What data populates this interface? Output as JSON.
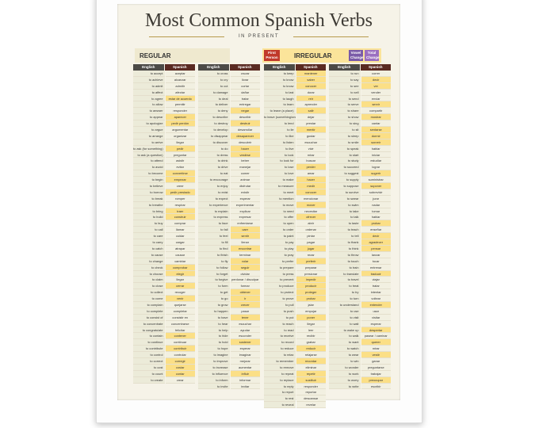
{
  "header": {
    "title": "Most Common Spanish Verbs",
    "subtitle": "IN PRESENT"
  },
  "legend": {
    "regular": "REGULAR",
    "irregular": "IRREGULAR",
    "first_person": "First Person",
    "vowel_change": "Vowel Change",
    "total_change": "Total Change"
  },
  "table": {
    "headers": [
      "English",
      "Spanish"
    ],
    "columns": [
      {
        "rows": [
          {
            "en": "to accept",
            "es": "aceptar"
          },
          {
            "en": "to achieve",
            "es": "alcanzar"
          },
          {
            "en": "to admit",
            "es": "admitir"
          },
          {
            "en": "to affect",
            "es": "afectar"
          },
          {
            "en": "to agree",
            "es": "estar de acuerdo",
            "irr": true
          },
          {
            "en": "to allow",
            "es": "permitir"
          },
          {
            "en": "to answer",
            "es": "responder"
          },
          {
            "en": "to appear",
            "es": "aparecer",
            "irr": true
          },
          {
            "en": "to apologize",
            "es": "pedir perdón",
            "irr": true
          },
          {
            "en": "to argue",
            "es": "argumentar"
          },
          {
            "en": "to arrange",
            "es": "organizar"
          },
          {
            "en": "to arrive",
            "es": "llegar"
          },
          {
            "en": "to ask (for something)",
            "es": "pedir",
            "irr": true
          },
          {
            "en": "to ask (a question)",
            "es": "preguntar"
          },
          {
            "en": "to attend",
            "es": "asistir"
          },
          {
            "en": "to avoid",
            "es": "evitar"
          },
          {
            "en": "to become",
            "es": "convertirse",
            "irr": true
          },
          {
            "en": "to begin",
            "es": "empezar",
            "irr": true
          },
          {
            "en": "to believe",
            "es": "creer"
          },
          {
            "en": "to borrow",
            "es": "pedir prestado",
            "irr": true
          },
          {
            "en": "to break",
            "es": "romper"
          },
          {
            "en": "to breathe",
            "es": "respirar"
          },
          {
            "en": "to bring",
            "es": "traer",
            "irr": true
          },
          {
            "en": "to build",
            "es": "construir",
            "irr": true
          },
          {
            "en": "to buy",
            "es": "comprar"
          },
          {
            "en": "to call",
            "es": "llamar"
          },
          {
            "en": "to care",
            "es": "cuidar"
          },
          {
            "en": "to carry",
            "es": "cargar"
          },
          {
            "en": "to catch",
            "es": "atrapar"
          },
          {
            "en": "to cause",
            "es": "causar"
          },
          {
            "en": "to change",
            "es": "cambiar"
          },
          {
            "en": "to check",
            "es": "comprobar",
            "irr": true
          },
          {
            "en": "to choose",
            "es": "elegir",
            "irr": true
          },
          {
            "en": "to claim",
            "es": "llegar"
          },
          {
            "en": "to close",
            "es": "cerrar",
            "irr": true
          },
          {
            "en": "to collect",
            "es": "recoger"
          },
          {
            "en": "to come",
            "es": "venir",
            "irr": true
          },
          {
            "en": "to complain",
            "es": "quejarse"
          },
          {
            "en": "to complete",
            "es": "completar"
          },
          {
            "en": "to consist of",
            "es": "consistir en"
          },
          {
            "en": "to concentrate",
            "es": "concentrarse"
          },
          {
            "en": "to congratulate",
            "es": "felicitar"
          },
          {
            "en": "to contain",
            "es": "contener",
            "irr": true
          },
          {
            "en": "to continue",
            "es": "continuar"
          },
          {
            "en": "to contribute",
            "es": "contribuir",
            "irr": true
          },
          {
            "en": "to control",
            "es": "controlar"
          },
          {
            "en": "to correct",
            "es": "corregir",
            "irr": true
          },
          {
            "en": "to cost",
            "es": "costar",
            "irr": true
          },
          {
            "en": "to count",
            "es": "contar",
            "irr": true
          },
          {
            "en": "to create",
            "es": "crear"
          }
        ]
      },
      {
        "rows": [
          {
            "en": "to cross",
            "es": "cruzar"
          },
          {
            "en": "to cry",
            "es": "llorar"
          },
          {
            "en": "to cut",
            "es": "cortar"
          },
          {
            "en": "to damage",
            "es": "dañar"
          },
          {
            "en": "to deal",
            "es": "tratar"
          },
          {
            "en": "to deliver",
            "es": "entregar"
          },
          {
            "en": "to deny",
            "es": "negar",
            "irr": true
          },
          {
            "en": "to describe",
            "es": "describir"
          },
          {
            "en": "to destroy",
            "es": "destruir",
            "irr": true
          },
          {
            "en": "to develop",
            "es": "desarrollar"
          },
          {
            "en": "to disappear",
            "es": "desaparecer",
            "irr": true
          },
          {
            "en": "to discover",
            "es": "descubrir"
          },
          {
            "en": "to do",
            "es": "hacer",
            "irr": true
          },
          {
            "en": "to dress",
            "es": "vestirse",
            "irr": true
          },
          {
            "en": "to drink",
            "es": "beber"
          },
          {
            "en": "to drive",
            "es": "manejar"
          },
          {
            "en": "to eat",
            "es": "comer"
          },
          {
            "en": "to encourage",
            "es": "animar"
          },
          {
            "en": "to enjoy",
            "es": "disfrutar"
          },
          {
            "en": "to exist",
            "es": "existir"
          },
          {
            "en": "to expect",
            "es": "esperar"
          },
          {
            "en": "to experience",
            "es": "experimentar"
          },
          {
            "en": "to explain",
            "es": "explicar"
          },
          {
            "en": "to express",
            "es": "expresar"
          },
          {
            "en": "to face",
            "es": "enfrentarse"
          },
          {
            "en": "to fall",
            "es": "caer",
            "irr": true
          },
          {
            "en": "to feel",
            "es": "sentir",
            "irr": true
          },
          {
            "en": "to fill",
            "es": "llenar"
          },
          {
            "en": "to find",
            "es": "encontrar",
            "irr": true
          },
          {
            "en": "to finish",
            "es": "terminar"
          },
          {
            "en": "to fly",
            "es": "volar",
            "irr": true
          },
          {
            "en": "to follow",
            "es": "seguir",
            "irr": true
          },
          {
            "en": "to forget",
            "es": "olvidar"
          },
          {
            "en": "to forgive",
            "es": "perdonar / disculpar"
          },
          {
            "en": "to form",
            "es": "formar"
          },
          {
            "en": "to get",
            "es": "obtener",
            "irr": true
          },
          {
            "en": "to go",
            "es": "ir",
            "irr": true
          },
          {
            "en": "to grow",
            "es": "crecer",
            "irr": true
          },
          {
            "en": "to happen",
            "es": "pasar"
          },
          {
            "en": "to have",
            "es": "tener",
            "irr": true
          },
          {
            "en": "to hear",
            "es": "escuchar"
          },
          {
            "en": "to help",
            "es": "ayudar"
          },
          {
            "en": "to hide",
            "es": "esconder"
          },
          {
            "en": "to hold",
            "es": "sostener",
            "irr": true
          },
          {
            "en": "to hope",
            "es": "esperar"
          },
          {
            "en": "to imagine",
            "es": "imaginar"
          },
          {
            "en": "to improve",
            "es": "mejorar"
          },
          {
            "en": "to increase",
            "es": "aumentar"
          },
          {
            "en": "to influence",
            "es": "influir",
            "irr": true
          },
          {
            "en": "to inform",
            "es": "informar"
          },
          {
            "en": "to invite",
            "es": "invitar"
          }
        ]
      },
      {
        "rows": [
          {
            "en": "to keep",
            "es": "mantener",
            "irr": true
          },
          {
            "en": "to know",
            "es": "saber",
            "irr": true
          },
          {
            "en": "to know",
            "es": "conocer",
            "irr": true
          },
          {
            "en": "to last",
            "es": "durar"
          },
          {
            "en": "to laugh",
            "es": "reír",
            "irr": true
          },
          {
            "en": "to learn",
            "es": "aprender"
          },
          {
            "en": "to leave (a place)",
            "es": "salir",
            "irr": true
          },
          {
            "en": "to leave (something/one)",
            "es": "dejar"
          },
          {
            "en": "to lend",
            "es": "prestar"
          },
          {
            "en": "to lie",
            "es": "mentir",
            "irr": true
          },
          {
            "en": "to like",
            "es": "gustar"
          },
          {
            "en": "to listen",
            "es": "escuchar"
          },
          {
            "en": "to live",
            "es": "vivir"
          },
          {
            "en": "to look",
            "es": "mirar"
          },
          {
            "en": "to look for",
            "es": "buscar"
          },
          {
            "en": "to lose",
            "es": "perder",
            "irr": true
          },
          {
            "en": "to love",
            "es": "amar"
          },
          {
            "en": "to make",
            "es": "hacer",
            "irr": true
          },
          {
            "en": "to measure",
            "es": "medir",
            "irr": true
          },
          {
            "en": "to meet",
            "es": "conocer",
            "irr": true
          },
          {
            "en": "to mention",
            "es": "mencionar"
          },
          {
            "en": "to move",
            "es": "mover",
            "irr": true
          },
          {
            "en": "to need",
            "es": "necesitar"
          },
          {
            "en": "to offer",
            "es": "ofrecer",
            "irr": true
          },
          {
            "en": "to open",
            "es": "abrir"
          },
          {
            "en": "to order",
            "es": "ordenar"
          },
          {
            "en": "to paint",
            "es": "pintar"
          },
          {
            "en": "to pay",
            "es": "pagar"
          },
          {
            "en": "to play",
            "es": "jugar",
            "irr": true
          },
          {
            "en": "to pray",
            "es": "rezar"
          },
          {
            "en": "to prefer",
            "es": "preferir",
            "irr": true
          },
          {
            "en": "to prepare",
            "es": "preparar"
          },
          {
            "en": "to press",
            "es": "presionar"
          },
          {
            "en": "to prevent",
            "es": "impedir",
            "irr": true
          },
          {
            "en": "to produce",
            "es": "producir",
            "irr": true
          },
          {
            "en": "to protect",
            "es": "proteger",
            "irr": true
          },
          {
            "en": "to prove",
            "es": "probar",
            "irr": true
          },
          {
            "en": "to pull",
            "es": "jalar"
          },
          {
            "en": "to push",
            "es": "empujar"
          },
          {
            "en": "to put",
            "es": "poner",
            "irr": true
          },
          {
            "en": "to reach",
            "es": "llegar"
          },
          {
            "en": "to read",
            "es": "leer"
          },
          {
            "en": "to receive",
            "es": "recibir"
          },
          {
            "en": "to record",
            "es": "grabar"
          },
          {
            "en": "to reduce",
            "es": "reducir",
            "irr": true
          },
          {
            "en": "to relax",
            "es": "relajarse"
          },
          {
            "en": "to remember",
            "es": "recordar",
            "irr": true
          },
          {
            "en": "to remove",
            "es": "eliminar"
          },
          {
            "en": "to repeat",
            "es": "repetir",
            "irr": true
          },
          {
            "en": "to replace",
            "es": "sustituir",
            "irr": true
          },
          {
            "en": "to reply",
            "es": "responder"
          },
          {
            "en": "to report",
            "es": "reportar"
          },
          {
            "en": "to rest",
            "es": "descansar"
          },
          {
            "en": "to reveal",
            "es": "revelar"
          }
        ]
      },
      {
        "rows": [
          {
            "en": "to run",
            "es": "correr"
          },
          {
            "en": "to say",
            "es": "decir",
            "irr": true
          },
          {
            "en": "to see",
            "es": "ver",
            "irr": true
          },
          {
            "en": "to sell",
            "es": "vender"
          },
          {
            "en": "to send",
            "es": "enviar"
          },
          {
            "en": "to serve",
            "es": "servir",
            "irr": true
          },
          {
            "en": "to share",
            "es": "compartir"
          },
          {
            "en": "to show",
            "es": "mostrar",
            "irr": true
          },
          {
            "en": "to sing",
            "es": "cantar"
          },
          {
            "en": "to sit",
            "es": "sentarse",
            "irr": true
          },
          {
            "en": "to sleep",
            "es": "dormir",
            "irr": true
          },
          {
            "en": "to smile",
            "es": "sonreír",
            "irr": true
          },
          {
            "en": "to speak",
            "es": "hablar"
          },
          {
            "en": "to start",
            "es": "iniciar"
          },
          {
            "en": "to study",
            "es": "estudiar"
          },
          {
            "en": "to succeed",
            "es": "lograr"
          },
          {
            "en": "to suggest",
            "es": "sugerir",
            "irr": true
          },
          {
            "en": "to supply",
            "es": "suministrar"
          },
          {
            "en": "to suppose",
            "es": "suponer",
            "irr": true
          },
          {
            "en": "to survive",
            "es": "sobrevivir"
          },
          {
            "en": "to swear",
            "es": "jurar"
          },
          {
            "en": "to swim",
            "es": "nadar"
          },
          {
            "en": "to take",
            "es": "tomar"
          },
          {
            "en": "to talk",
            "es": "hablar"
          },
          {
            "en": "to taste",
            "es": "probar",
            "irr": true
          },
          {
            "en": "to teach",
            "es": "enseñar"
          },
          {
            "en": "to tell",
            "es": "decir",
            "irr": true
          },
          {
            "en": "to thank",
            "es": "agradecer",
            "irr": true
          },
          {
            "en": "to think",
            "es": "pensar",
            "irr": true
          },
          {
            "en": "to throw",
            "es": "lanzar"
          },
          {
            "en": "to touch",
            "es": "tocar"
          },
          {
            "en": "to train",
            "es": "entrenar"
          },
          {
            "en": "to translate",
            "es": "traducir",
            "irr": true
          },
          {
            "en": "to travel",
            "es": "viajar"
          },
          {
            "en": "to treat",
            "es": "tratar"
          },
          {
            "en": "to try",
            "es": "intentar"
          },
          {
            "en": "to turn",
            "es": "voltear"
          },
          {
            "en": "to understand",
            "es": "entender",
            "irr": true
          },
          {
            "en": "to use",
            "es": "usar"
          },
          {
            "en": "to visit",
            "es": "visitar"
          },
          {
            "en": "to wait",
            "es": "esperar"
          },
          {
            "en": "to wake up",
            "es": "despertar",
            "irr": true
          },
          {
            "en": "to walk",
            "es": "pasear / caminar"
          },
          {
            "en": "to want",
            "es": "querer",
            "irr": true
          },
          {
            "en": "to watch",
            "es": "mirar"
          },
          {
            "en": "to wear",
            "es": "vestir",
            "irr": true
          },
          {
            "en": "to win",
            "es": "ganar"
          },
          {
            "en": "to wonder",
            "es": "preguntarse"
          },
          {
            "en": "to work",
            "es": "trabajar"
          },
          {
            "en": "to worry",
            "es": "preocupar",
            "irr": true
          },
          {
            "en": "to write",
            "es": "escribir"
          }
        ]
      }
    ]
  }
}
